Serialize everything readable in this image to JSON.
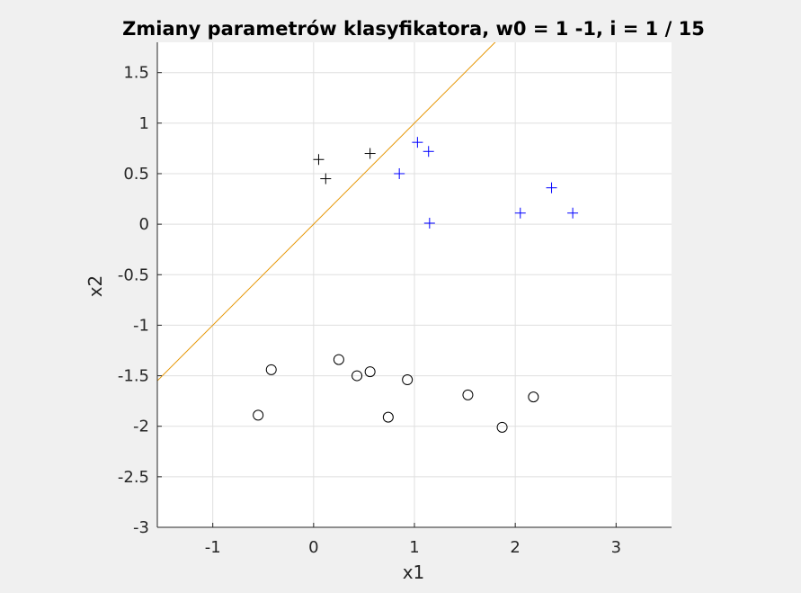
{
  "chart_data": {
    "type": "scatter",
    "title": "Zmiany parametrów klasyfikatora, w0 = 1 -1, i = 1 / 15",
    "xlabel": "x1",
    "ylabel": "x2",
    "xlim": [
      -1.55,
      3.55
    ],
    "ylim": [
      -3,
      1.8
    ],
    "xticks": [
      -1,
      0,
      1,
      2,
      3
    ],
    "xtick_labels": [
      "-1",
      "0",
      "1",
      "2",
      "3"
    ],
    "yticks": [
      -3,
      -2.5,
      -2,
      -1.5,
      -1,
      -0.5,
      0,
      0.5,
      1,
      1.5
    ],
    "ytick_labels": [
      "-3",
      "-2.5",
      "-2",
      "-1.5",
      "-1",
      "-0.5",
      "0",
      "0.5",
      "1",
      "1.5"
    ],
    "grid": true,
    "series": [
      {
        "marker": "plus",
        "color": "#000000",
        "points": [
          [
            0.05,
            0.64
          ],
          [
            0.12,
            0.45
          ],
          [
            0.56,
            0.7
          ]
        ]
      },
      {
        "marker": "plus",
        "color": "#0000ff",
        "points": [
          [
            0.85,
            0.5
          ],
          [
            1.03,
            0.81
          ],
          [
            1.14,
            0.72
          ],
          [
            1.15,
            0.01
          ],
          [
            2.05,
            0.11
          ],
          [
            2.36,
            0.36
          ],
          [
            2.57,
            0.11
          ]
        ]
      },
      {
        "marker": "circle",
        "color": "#000000",
        "points": [
          [
            -0.55,
            -1.89
          ],
          [
            -0.42,
            -1.44
          ],
          [
            0.25,
            -1.34
          ],
          [
            0.43,
            -1.5
          ],
          [
            0.56,
            -1.46
          ],
          [
            0.74,
            -1.91
          ],
          [
            0.93,
            -1.54
          ],
          [
            1.53,
            -1.69
          ],
          [
            1.87,
            -2.01
          ],
          [
            2.18,
            -1.71
          ]
        ]
      }
    ],
    "lines": [
      {
        "color": "#e69500",
        "from": [
          -1.55,
          -1.55
        ],
        "to": [
          3.55,
          3.55
        ]
      }
    ]
  }
}
